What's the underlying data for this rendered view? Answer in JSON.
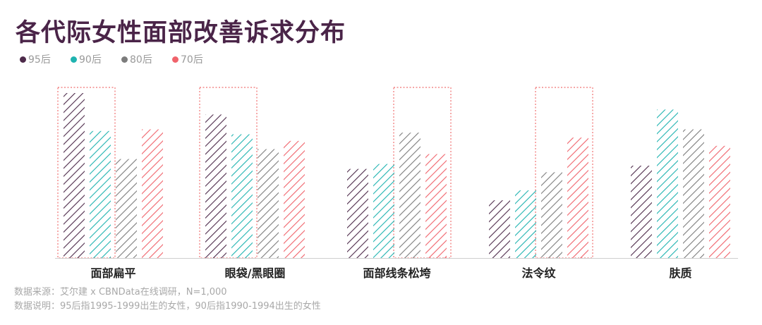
{
  "title": "各代际女性面部改善诉求分布",
  "chart_data": {
    "type": "bar",
    "categories": [
      "面部扁平",
      "眼袋/黑眼圈",
      "面部线条松垮",
      "法令纹",
      "肤质"
    ],
    "series": [
      {
        "name": "95后",
        "color": "#4d2a4a",
        "values": [
          100,
          87,
          54,
          35,
          56
        ]
      },
      {
        "name": "90后",
        "color": "#1fb3b0",
        "values": [
          77,
          75,
          57,
          41,
          90
        ]
      },
      {
        "name": "80后",
        "color": "#7c7c7c",
        "values": [
          60,
          66,
          76,
          52,
          78
        ]
      },
      {
        "name": "70后",
        "color": "#f0636b",
        "values": [
          78,
          71,
          63,
          73,
          68
        ]
      }
    ],
    "highlight": [
      {
        "category": "面部扁平",
        "series": [
          "95后",
          "90后"
        ]
      },
      {
        "category": "眼袋/黑眼圈",
        "series": [
          "95后",
          "90后"
        ]
      },
      {
        "category": "面部线条松垮",
        "series": [
          "80后",
          "70后"
        ]
      },
      {
        "category": "法令纹",
        "series": [
          "80后",
          "70后"
        ]
      }
    ],
    "highlight_color": "#f07070",
    "ylim": [
      0,
      100
    ],
    "grid": false,
    "legend_position": "top-left"
  },
  "footnotes": {
    "source": "数据来源：艾尔建 x CBNData在线调研，N=1,000",
    "note": "数据说明：95后指1995-1999出生的女性，90后指1990-1994出生的女性"
  }
}
